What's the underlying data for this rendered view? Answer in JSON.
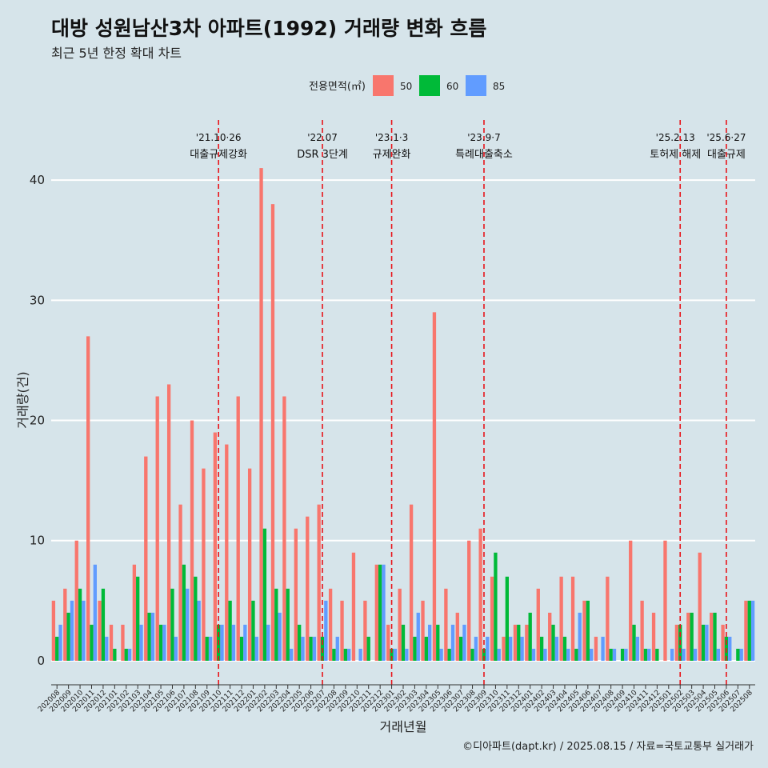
{
  "header": {
    "title": "대방 성원남산3차 아파트(1992) 거래량 변화 흐름",
    "subtitle": "최근 5년 한정 확대 차트"
  },
  "caption": "©디아파트(dapt.kr) / 2025.08.15 / 자료=국토교통부 실거래가",
  "colors": {
    "s50": "#f8766d",
    "s60": "#00ba38",
    "s85": "#619cff",
    "event": "#e8141a",
    "background": "#d6e4ea",
    "grid": "#ffffff"
  },
  "chart_data": {
    "type": "bar",
    "xlabel": "거래년월",
    "ylabel": "거래량(건)",
    "ylim": [
      -2,
      45
    ],
    "yticks": [
      0,
      10,
      20,
      30,
      40
    ],
    "grid": true,
    "legend": {
      "title": "전용면적(㎡)",
      "placement": "top"
    },
    "categories": [
      "202008",
      "202009",
      "202010",
      "202011",
      "202012",
      "202101",
      "202102",
      "202103",
      "202104",
      "202105",
      "202106",
      "202107",
      "202108",
      "202109",
      "202110",
      "202111",
      "202112",
      "202201",
      "202202",
      "202203",
      "202204",
      "202205",
      "202206",
      "202207",
      "202208",
      "202209",
      "202210",
      "202211",
      "202212",
      "202301",
      "202302",
      "202303",
      "202304",
      "202305",
      "202306",
      "202307",
      "202308",
      "202309",
      "202310",
      "202311",
      "202312",
      "202401",
      "202402",
      "202403",
      "202404",
      "202405",
      "202406",
      "202407",
      "202408",
      "202409",
      "202410",
      "202411",
      "202412",
      "202501",
      "202502",
      "202503",
      "202504",
      "202505",
      "202506",
      "202507",
      "202508"
    ],
    "series": [
      {
        "name": "50",
        "color": "#f8766d",
        "values": [
          5,
          6,
          10,
          27,
          5,
          3,
          3,
          8,
          17,
          22,
          23,
          13,
          20,
          16,
          19,
          18,
          22,
          16,
          41,
          38,
          22,
          11,
          12,
          13,
          6,
          5,
          9,
          5,
          8,
          3,
          6,
          13,
          5,
          29,
          6,
          4,
          10,
          11,
          7,
          2,
          3,
          3,
          6,
          4,
          7,
          7,
          5,
          2,
          7,
          0,
          10,
          5,
          4,
          10,
          3,
          4,
          9,
          4,
          3,
          0,
          5
        ]
      },
      {
        "name": "60",
        "color": "#00ba38",
        "values": [
          2,
          4,
          6,
          3,
          6,
          1,
          1,
          7,
          4,
          3,
          6,
          8,
          7,
          2,
          3,
          5,
          2,
          5,
          11,
          6,
          6,
          3,
          2,
          2,
          1,
          1,
          0,
          2,
          8,
          1,
          3,
          2,
          2,
          3,
          1,
          2,
          1,
          1,
          9,
          7,
          3,
          4,
          2,
          3,
          2,
          1,
          5,
          0,
          1,
          1,
          3,
          1,
          1,
          0,
          3,
          4,
          3,
          4,
          2,
          1,
          5
        ]
      },
      {
        "name": "85",
        "color": "#619cff",
        "values": [
          3,
          5,
          5,
          8,
          2,
          0,
          1,
          3,
          4,
          3,
          2,
          6,
          5,
          2,
          3,
          3,
          3,
          2,
          3,
          4,
          1,
          2,
          2,
          5,
          2,
          1,
          1,
          0,
          8,
          1,
          1,
          4,
          3,
          1,
          3,
          3,
          2,
          2,
          1,
          2,
          2,
          1,
          1,
          2,
          1,
          4,
          1,
          2,
          1,
          1,
          2,
          1,
          0,
          1,
          1,
          1,
          3,
          1,
          2,
          1,
          5
        ]
      }
    ],
    "events": [
      {
        "date": "'21.10·26",
        "label": "대출규제강화",
        "after": "202110"
      },
      {
        "date": "'22.07",
        "label": "DSR 3단계",
        "after": "202207"
      },
      {
        "date": "'23.1·3",
        "label": "규제완화",
        "after": "202301"
      },
      {
        "date": "'23.9·7",
        "label": "특례대출축소",
        "after": "202309"
      },
      {
        "date": "'25.2.13",
        "label": "토허제 해제",
        "after": "202502"
      },
      {
        "date": "'25.6·27",
        "label": "대출규제",
        "after": "202506"
      }
    ]
  }
}
